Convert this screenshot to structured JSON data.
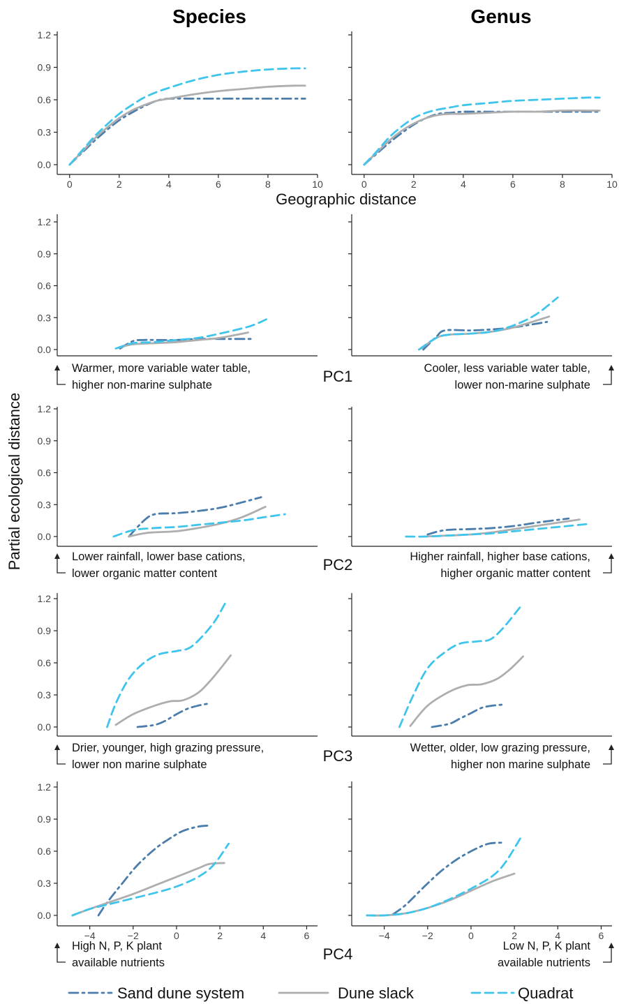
{
  "column_titles": [
    "Species",
    "Genus"
  ],
  "geo_xlabel": "Geographic distance",
  "ylabel": "Partial ecological distance",
  "colors": {
    "sand_dune_system": "#4a7cac",
    "dune_slack": "#aeaeae",
    "quadrat": "#3fc4ec"
  },
  "legend": [
    "Sand dune system",
    "Dune slack",
    "Quadrat"
  ],
  "chart_data": [
    {
      "id": "geo-species",
      "type": "line",
      "xlim": [
        -0.5,
        10
      ],
      "ylim": [
        0,
        1.2
      ],
      "xticks": [
        "0",
        "2",
        "4",
        "6",
        "8",
        "10"
      ],
      "yticks": [
        "0.0",
        "0.3",
        "0.6",
        "0.9",
        "1.2"
      ],
      "series": [
        {
          "name": "Sand dune system",
          "x": [
            0,
            0.5,
            1,
            1.5,
            2,
            2.5,
            3,
            3.5,
            4,
            5,
            6,
            7,
            8,
            9,
            9.5
          ],
          "y": [
            0,
            0.11,
            0.22,
            0.32,
            0.41,
            0.48,
            0.54,
            0.59,
            0.61,
            0.61,
            0.61,
            0.61,
            0.61,
            0.61,
            0.61
          ]
        },
        {
          "name": "Dune slack",
          "x": [
            0,
            0.5,
            1,
            1.5,
            2,
            2.5,
            3,
            3.5,
            4,
            5,
            6,
            7,
            8,
            9,
            9.5
          ],
          "y": [
            0,
            0.12,
            0.24,
            0.34,
            0.43,
            0.5,
            0.55,
            0.59,
            0.61,
            0.65,
            0.68,
            0.7,
            0.72,
            0.73,
            0.73
          ]
        },
        {
          "name": "Quadrat",
          "x": [
            0,
            0.5,
            1,
            1.5,
            2,
            2.5,
            3,
            3.5,
            4,
            5,
            6,
            7,
            8,
            9,
            9.5
          ],
          "y": [
            0,
            0.13,
            0.26,
            0.37,
            0.47,
            0.55,
            0.62,
            0.67,
            0.71,
            0.78,
            0.83,
            0.86,
            0.88,
            0.89,
            0.89
          ]
        }
      ]
    },
    {
      "id": "geo-genus",
      "type": "line",
      "xlim": [
        -0.5,
        10
      ],
      "ylim": [
        0,
        1.2
      ],
      "xticks": [
        "0",
        "2",
        "4",
        "6",
        "8",
        "10"
      ],
      "yticks": [],
      "series": [
        {
          "name": "Sand dune system",
          "x": [
            0,
            0.5,
            1,
            1.5,
            2,
            2.5,
            3,
            3.5,
            4,
            5,
            6,
            7,
            8,
            9,
            9.5
          ],
          "y": [
            0,
            0.1,
            0.2,
            0.29,
            0.37,
            0.43,
            0.47,
            0.48,
            0.49,
            0.49,
            0.49,
            0.49,
            0.49,
            0.49,
            0.49
          ]
        },
        {
          "name": "Dune slack",
          "x": [
            0,
            0.5,
            1,
            1.5,
            2,
            2.5,
            3,
            3.5,
            4,
            5,
            6,
            7,
            8,
            9,
            9.5
          ],
          "y": [
            0,
            0.11,
            0.22,
            0.31,
            0.38,
            0.43,
            0.46,
            0.47,
            0.47,
            0.48,
            0.49,
            0.49,
            0.5,
            0.5,
            0.5
          ]
        },
        {
          "name": "Quadrat",
          "x": [
            0,
            0.5,
            1,
            1.5,
            2,
            2.5,
            3,
            3.5,
            4,
            5,
            6,
            7,
            8,
            9,
            9.5
          ],
          "y": [
            0,
            0.12,
            0.25,
            0.35,
            0.43,
            0.48,
            0.51,
            0.53,
            0.55,
            0.57,
            0.59,
            0.6,
            0.61,
            0.62,
            0.62
          ]
        }
      ]
    },
    {
      "id": "pc1-species",
      "type": "line",
      "xlim": [
        -5.5,
        6.5
      ],
      "ylim": [
        0,
        1.2
      ],
      "xticks": [],
      "yticks": [
        "0.0",
        "0.3",
        "0.6",
        "0.9",
        "1.2"
      ],
      "series": [
        {
          "name": "Sand dune system",
          "x": [
            -2.6,
            -2,
            -1.5,
            -1,
            0,
            1,
            2,
            3.5
          ],
          "y": [
            0.01,
            0.08,
            0.09,
            0.09,
            0.09,
            0.1,
            0.1,
            0.1
          ]
        },
        {
          "name": "Dune slack",
          "x": [
            -2.6,
            -2,
            -1,
            0,
            1,
            2,
            3.3
          ],
          "y": [
            0.02,
            0.05,
            0.06,
            0.07,
            0.09,
            0.11,
            0.16
          ]
        },
        {
          "name": "Quadrat",
          "x": [
            -2.8,
            -2,
            -1,
            0,
            1,
            2,
            3.4,
            4.2
          ],
          "y": [
            0.01,
            0.06,
            0.07,
            0.09,
            0.11,
            0.15,
            0.22,
            0.29
          ]
        }
      ]
    },
    {
      "id": "pc1-genus",
      "type": "line",
      "xlim": [
        -5.5,
        6.5
      ],
      "ylim": [
        0,
        1.2
      ],
      "xticks": [],
      "yticks": [],
      "series": [
        {
          "name": "Sand dune system",
          "x": [
            -2.2,
            -1.6,
            -1.2,
            0,
            1,
            2,
            3.5
          ],
          "y": [
            0,
            0.12,
            0.18,
            0.18,
            0.19,
            0.21,
            0.26
          ]
        },
        {
          "name": "Dune slack",
          "x": [
            -2.3,
            -1.6,
            -1,
            0,
            1,
            2,
            3.6
          ],
          "y": [
            0.01,
            0.11,
            0.14,
            0.15,
            0.17,
            0.21,
            0.31
          ]
        },
        {
          "name": "Quadrat",
          "x": [
            -2.4,
            -1.6,
            -1,
            0,
            1,
            2,
            3,
            4
          ],
          "y": [
            0,
            0.11,
            0.14,
            0.15,
            0.17,
            0.23,
            0.33,
            0.49
          ]
        }
      ]
    },
    {
      "id": "pc2-species",
      "type": "line",
      "xlim": [
        -5.5,
        6.5
      ],
      "ylim": [
        0,
        1.2
      ],
      "xticks": [],
      "yticks": [
        "0.0",
        "0.3",
        "0.6",
        "0.9",
        "1.2"
      ],
      "series": [
        {
          "name": "Sand dune system",
          "x": [
            -2.2,
            -1.5,
            -1,
            0,
            1,
            2,
            3,
            3.9
          ],
          "y": [
            0,
            0.15,
            0.21,
            0.22,
            0.24,
            0.27,
            0.32,
            0.37
          ]
        },
        {
          "name": "Dune slack",
          "x": [
            -2.2,
            -1.5,
            -1,
            0,
            1,
            2,
            3,
            4.1
          ],
          "y": [
            0,
            0.03,
            0.04,
            0.05,
            0.08,
            0.12,
            0.18,
            0.28
          ]
        },
        {
          "name": "Quadrat",
          "x": [
            -2.9,
            -2,
            -1,
            0,
            1,
            2,
            3,
            4,
            5
          ],
          "y": [
            0,
            0.06,
            0.08,
            0.09,
            0.11,
            0.13,
            0.15,
            0.18,
            0.21
          ]
        }
      ]
    },
    {
      "id": "pc2-genus",
      "type": "line",
      "xlim": [
        -5.5,
        6.5
      ],
      "ylim": [
        0,
        1.2
      ],
      "xticks": [],
      "yticks": [],
      "series": [
        {
          "name": "Sand dune system",
          "x": [
            -2,
            -1.2,
            0,
            1,
            2,
            3,
            4.5
          ],
          "y": [
            0.02,
            0.06,
            0.07,
            0.08,
            0.1,
            0.13,
            0.17
          ]
        },
        {
          "name": "Dune slack",
          "x": [
            -2.2,
            -1,
            0,
            1,
            2,
            3,
            5
          ],
          "y": [
            0,
            0.01,
            0.02,
            0.04,
            0.07,
            0.1,
            0.16
          ]
        },
        {
          "name": "Quadrat",
          "x": [
            -3,
            -2,
            -1,
            0,
            1,
            2,
            3,
            4,
            5.5
          ],
          "y": [
            0,
            0,
            0.01,
            0.02,
            0.03,
            0.05,
            0.07,
            0.09,
            0.12
          ]
        }
      ]
    },
    {
      "id": "pc3-species",
      "type": "line",
      "xlim": [
        -5.5,
        6.5
      ],
      "ylim": [
        0,
        1.2
      ],
      "xticks": [],
      "yticks": [
        "0.0",
        "0.3",
        "0.6",
        "0.9",
        "1.2"
      ],
      "series": [
        {
          "name": "Sand dune system",
          "x": [
            -1.8,
            -1,
            -0.5,
            0,
            0.5,
            1,
            1.5
          ],
          "y": [
            0,
            0.02,
            0.06,
            0.12,
            0.17,
            0.2,
            0.22
          ]
        },
        {
          "name": "Dune slack",
          "x": [
            -2.8,
            -2,
            -1,
            -0.3,
            0.3,
            1,
            1.5,
            2,
            2.5
          ],
          "y": [
            0.02,
            0.12,
            0.2,
            0.24,
            0.25,
            0.32,
            0.42,
            0.54,
            0.67
          ]
        },
        {
          "name": "Quadrat",
          "x": [
            -3.2,
            -2.8,
            -2.2,
            -1.5,
            -0.8,
            0,
            0.6,
            1.2,
            1.8,
            2.3
          ],
          "y": [
            0,
            0.22,
            0.45,
            0.6,
            0.68,
            0.71,
            0.74,
            0.85,
            1.0,
            1.18
          ]
        }
      ]
    },
    {
      "id": "pc3-genus",
      "type": "line",
      "xlim": [
        -5.5,
        6.5
      ],
      "ylim": [
        0,
        1.2
      ],
      "xticks": [],
      "yticks": [],
      "series": [
        {
          "name": "Sand dune system",
          "x": [
            -1.8,
            -1,
            -0.5,
            0,
            0.5,
            1,
            1.5
          ],
          "y": [
            0,
            0.03,
            0.08,
            0.13,
            0.18,
            0.2,
            0.21
          ]
        },
        {
          "name": "Dune slack",
          "x": [
            -2.8,
            -2,
            -1,
            -0.2,
            0.5,
            1.2,
            1.8,
            2.4
          ],
          "y": [
            0.01,
            0.2,
            0.33,
            0.39,
            0.4,
            0.45,
            0.54,
            0.66
          ]
        },
        {
          "name": "Quadrat",
          "x": [
            -3.3,
            -2.7,
            -2,
            -1.2,
            -0.5,
            0.3,
            0.9,
            1.5,
            2.3
          ],
          "y": [
            0,
            0.28,
            0.55,
            0.7,
            0.78,
            0.8,
            0.82,
            0.93,
            1.13
          ]
        }
      ]
    },
    {
      "id": "pc4-species",
      "type": "line",
      "xlim": [
        -5.5,
        6.5
      ],
      "ylim": [
        0,
        1.2
      ],
      "xticks": [
        "−4",
        "−2",
        "0",
        "2",
        "4",
        "6"
      ],
      "yticks": [
        "0.0",
        "0.3",
        "0.6",
        "0.9",
        "1.2"
      ],
      "series": [
        {
          "name": "Sand dune system",
          "x": [
            -3.6,
            -3.2,
            -2.5,
            -1.8,
            -1,
            -0.3,
            0.3,
            1,
            1.5
          ],
          "y": [
            0,
            0.12,
            0.3,
            0.47,
            0.62,
            0.72,
            0.79,
            0.83,
            0.84
          ]
        },
        {
          "name": "Dune slack",
          "x": [
            -4.8,
            -4,
            -3,
            -2,
            -1,
            0,
            1,
            1.5,
            2.2
          ],
          "y": [
            0,
            0.06,
            0.13,
            0.2,
            0.28,
            0.36,
            0.44,
            0.48,
            0.49
          ]
        },
        {
          "name": "Quadrat",
          "x": [
            -4.8,
            -4,
            -3,
            -2,
            -1,
            0,
            1,
            1.7,
            2.4
          ],
          "y": [
            0,
            0.06,
            0.11,
            0.16,
            0.21,
            0.27,
            0.36,
            0.47,
            0.67
          ]
        }
      ]
    },
    {
      "id": "pc4-genus",
      "type": "line",
      "xlim": [
        -5.5,
        6.5
      ],
      "ylim": [
        0,
        1.2
      ],
      "xticks": [
        "−4",
        "−2",
        "0",
        "2",
        "4",
        "6"
      ],
      "yticks": [],
      "series": [
        {
          "name": "Sand dune system",
          "x": [
            -3.6,
            -3,
            -2.2,
            -1.4,
            -0.6,
            0.2,
            0.8,
            1.4
          ],
          "y": [
            0.01,
            0.1,
            0.26,
            0.41,
            0.53,
            0.62,
            0.67,
            0.68
          ]
        },
        {
          "name": "Dune slack",
          "x": [
            -4.8,
            -4,
            -3,
            -2,
            -1,
            0,
            1,
            2
          ],
          "y": [
            0,
            0,
            0.02,
            0.07,
            0.14,
            0.23,
            0.32,
            0.39
          ]
        },
        {
          "name": "Quadrat",
          "x": [
            -4.8,
            -4,
            -3,
            -2,
            -1,
            0,
            1,
            1.6,
            2.3
          ],
          "y": [
            0,
            0,
            0.02,
            0.07,
            0.15,
            0.25,
            0.37,
            0.5,
            0.73
          ]
        }
      ]
    }
  ],
  "pc_rows": [
    {
      "label": "PC1",
      "left": [
        "Warmer, more variable water table,",
        "higher non-marine sulphate"
      ],
      "right": [
        "Cooler, less variable water table,",
        "lower non-marine sulphate"
      ]
    },
    {
      "label": "PC2",
      "left": [
        "Lower rainfall, lower base cations,",
        "lower organic matter content"
      ],
      "right": [
        "Higher rainfall, higher base cations,",
        "higher organic matter content"
      ]
    },
    {
      "label": "PC3",
      "left": [
        "Drier, younger, high grazing pressure,",
        "lower non marine sulphate"
      ],
      "right": [
        "Wetter, older, low grazing pressure,",
        "higher non marine sulphate"
      ]
    },
    {
      "label": "PC4",
      "left": [
        "High N, P, K plant",
        "available nutrients"
      ],
      "right": [
        "Low N, P, K plant",
        "available nutrients"
      ]
    }
  ]
}
